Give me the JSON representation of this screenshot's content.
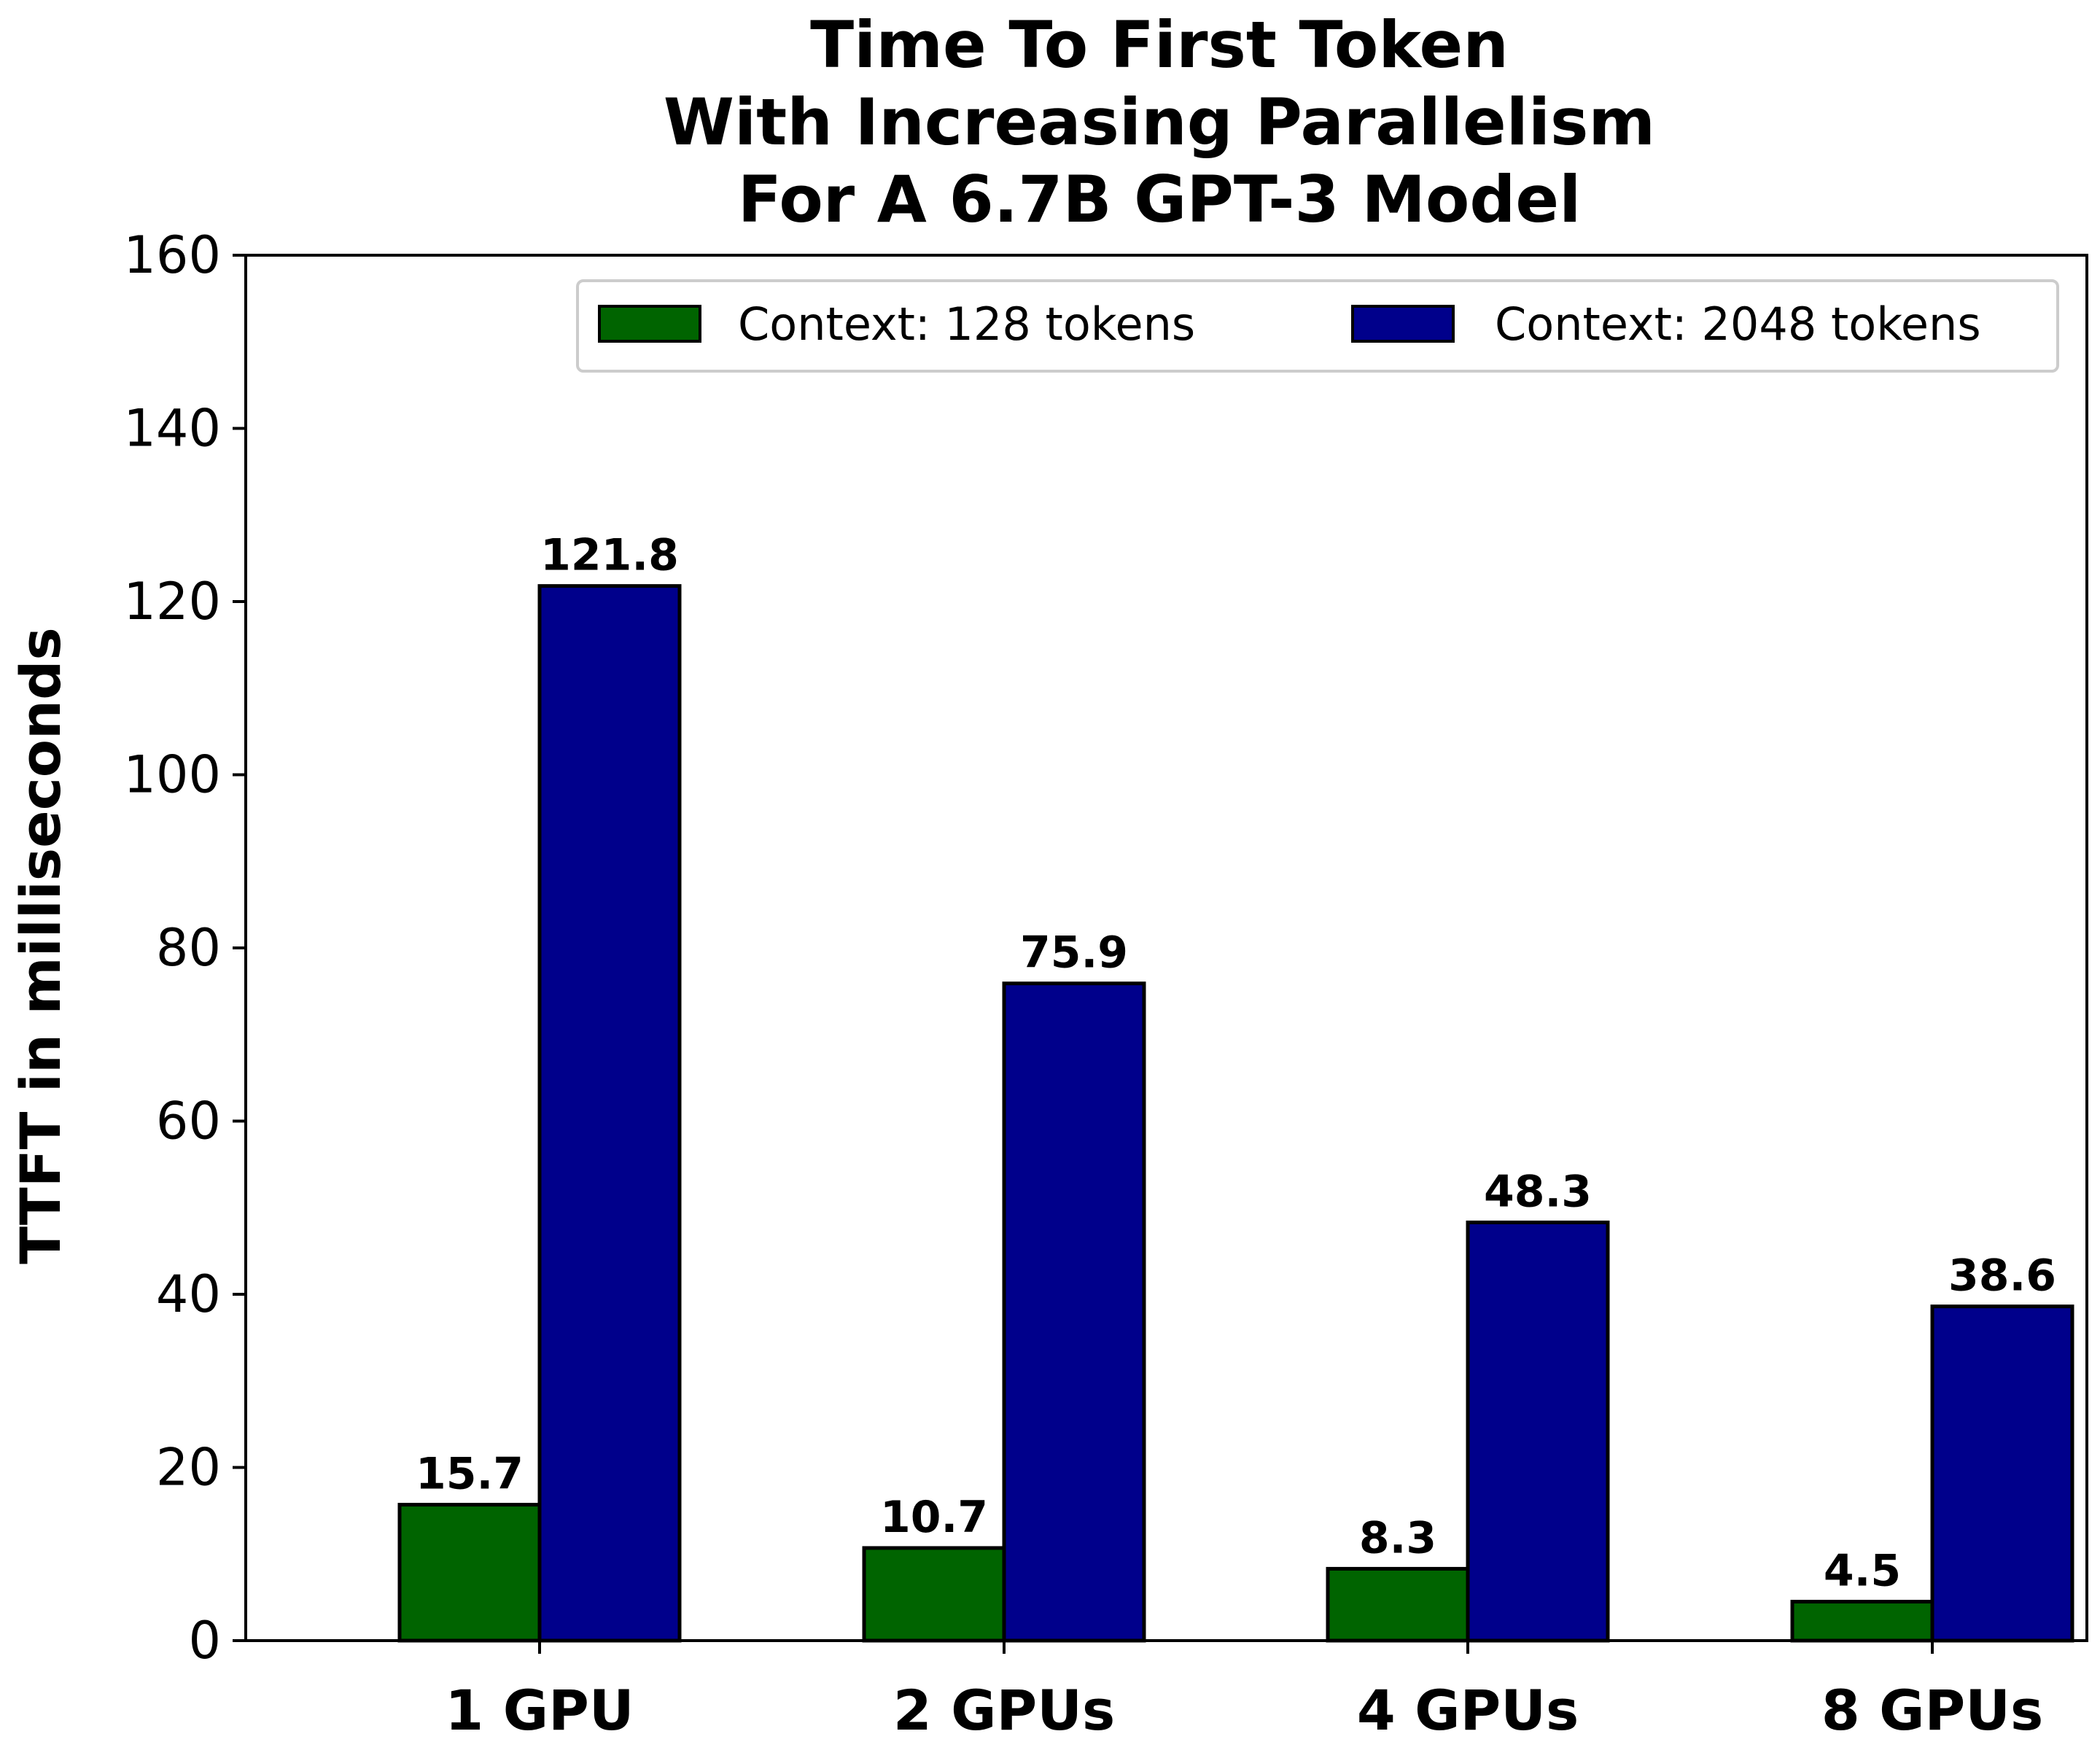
{
  "chart_data": {
    "type": "bar",
    "title_lines": [
      "Time To First Token",
      "With Increasing Parallelism",
      "For A 6.7B GPT-3 Model"
    ],
    "xlabel": "",
    "ylabel": "TTFT in milliseconds",
    "ylim": [
      0,
      160
    ],
    "yticks": [
      "0",
      "20",
      "40",
      "60",
      "80",
      "100",
      "120",
      "140",
      "160"
    ],
    "categories": [
      "1 GPU",
      "2 GPUs",
      "4 GPUs",
      "8 GPUs"
    ],
    "series": [
      {
        "name": "Context: 128 tokens",
        "color": "#006400",
        "values": [
          15.7,
          10.7,
          8.3,
          4.5
        ],
        "labels": [
          "15.7",
          "10.7",
          "8.3",
          "4.5"
        ]
      },
      {
        "name": "Context: 2048 tokens",
        "color": "#00008B",
        "values": [
          121.8,
          75.9,
          48.3,
          38.6
        ],
        "labels": [
          "121.8",
          "75.9",
          "48.3",
          "38.6"
        ]
      }
    ],
    "legend_position": "top-right",
    "grid": false
  }
}
